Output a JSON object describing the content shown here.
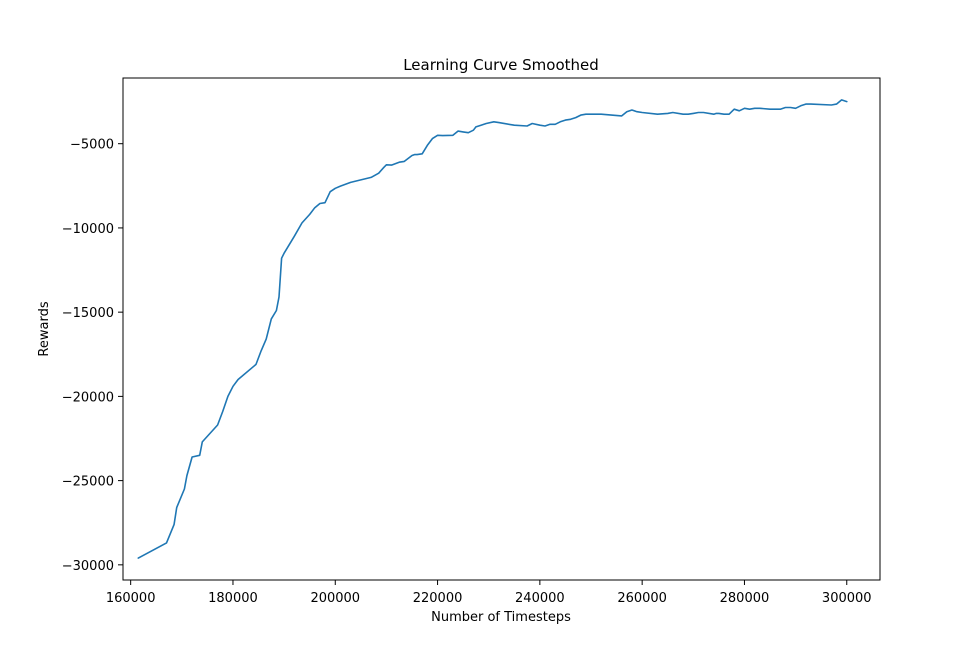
{
  "chart_data": {
    "type": "line",
    "title": "Learning Curve Smoothed",
    "xlabel": "Number of Timesteps",
    "ylabel": "Rewards",
    "xlim": [
      158500,
      306500
    ],
    "ylim": [
      -30900,
      -1100
    ],
    "xticks": [
      160000,
      180000,
      200000,
      220000,
      240000,
      260000,
      280000,
      300000
    ],
    "xtick_labels": [
      "160000",
      "180000",
      "200000",
      "220000",
      "240000",
      "260000",
      "280000",
      "300000"
    ],
    "yticks": [
      -30000,
      -25000,
      -20000,
      -15000,
      -10000,
      -5000
    ],
    "ytick_labels": [
      "−30000",
      "−25000",
      "−20000",
      "−15000",
      "−10000",
      "−5000"
    ],
    "grid": false,
    "legend": "none",
    "series": [
      {
        "color": "#1f77b4",
        "x": [
          161500,
          167000,
          168500,
          169000,
          170500,
          171000,
          172000,
          173500,
          174000,
          177000,
          178000,
          179000,
          180000,
          181000,
          184500,
          185500,
          186500,
          187500,
          188500,
          189000,
          189500,
          190000,
          192000,
          193500,
          195000,
          196000,
          197000,
          198000,
          199000,
          200000,
          201000,
          203000,
          205000,
          207000,
          208500,
          209500,
          210000,
          211000,
          212500,
          213500,
          215000,
          215500,
          216000,
          217000,
          218000,
          219000,
          220000,
          221000,
          223000,
          224000,
          225000,
          226000,
          227000,
          227500,
          228500,
          229500,
          231000,
          232000,
          235000,
          237500,
          238500,
          240000,
          241000,
          242000,
          243000,
          244000,
          245000,
          246000,
          247000,
          248000,
          249000,
          252000,
          256000,
          257000,
          258000,
          259000,
          260000,
          263000,
          265000,
          266000,
          268000,
          269000,
          270000,
          271000,
          272000,
          274000,
          274500,
          275000,
          276000,
          277000,
          278000,
          279000,
          280000,
          281000,
          282000,
          283000,
          285000,
          287000,
          288000,
          289000,
          290000,
          291000,
          292000,
          293000,
          297000,
          298000,
          299000,
          300000
        ],
        "y": [
          -29600,
          -28700,
          -27600,
          -26600,
          -25500,
          -24700,
          -23600,
          -23500,
          -22700,
          -21700,
          -20900,
          -20000,
          -19400,
          -19000,
          -18100,
          -17300,
          -16600,
          -15400,
          -14900,
          -14100,
          -11800,
          -11500,
          -10500,
          -9700,
          -9200,
          -8800,
          -8550,
          -8500,
          -7850,
          -7650,
          -7520,
          -7300,
          -7150,
          -7000,
          -6750,
          -6400,
          -6250,
          -6270,
          -6100,
          -6050,
          -5700,
          -5650,
          -5650,
          -5600,
          -5100,
          -4700,
          -4500,
          -4520,
          -4500,
          -4250,
          -4300,
          -4350,
          -4200,
          -4000,
          -3900,
          -3800,
          -3700,
          -3750,
          -3900,
          -3950,
          -3800,
          -3900,
          -3950,
          -3850,
          -3850,
          -3700,
          -3600,
          -3550,
          -3450,
          -3300,
          -3250,
          -3250,
          -3350,
          -3100,
          -3000,
          -3100,
          -3150,
          -3250,
          -3200,
          -3150,
          -3250,
          -3250,
          -3200,
          -3150,
          -3150,
          -3250,
          -3200,
          -3200,
          -3250,
          -3250,
          -2950,
          -3050,
          -2900,
          -2950,
          -2900,
          -2900,
          -2950,
          -2950,
          -2850,
          -2850,
          -2900,
          -2750,
          -2650,
          -2650,
          -2700,
          -2650,
          -2400,
          -2500
        ]
      }
    ]
  }
}
